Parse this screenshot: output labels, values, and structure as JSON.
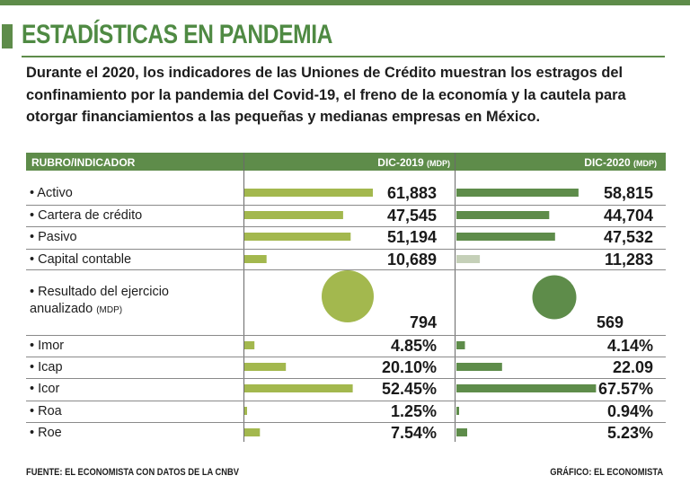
{
  "title": "ESTADÍSTICAS EN PANDEMIA",
  "intro": "Durante el 2020, los indicadores de las Uniones de Crédito muestran los estragos del confinamiento por la pandemia del Covid-19, el freno de la economía y la cautela para otorgar financiamientos a las pequeñas y medianas empresas en México.",
  "header": {
    "col1": "RUBRO/INDICADOR",
    "col2": "DIC-2019",
    "col2_unit": "(MDP)",
    "col3": "DIC-2020",
    "col3_unit": "(MDP)"
  },
  "footer": {
    "source": "FUENTE: EL ECONOMISTA CON DATOS DE LA CNBV",
    "credit": "GRÁFICO: EL ECONOMISTA"
  },
  "colors": {
    "green_2019": "#a3b84e",
    "green_2020": "#5e8c4a",
    "capital_2020": "#c5d0b8",
    "header_bg": "#5e8c4a",
    "title": "#4f8a43"
  },
  "chart_data": {
    "type": "table",
    "series": [
      {
        "name": "DIC-2019 (MDP)"
      },
      {
        "name": "DIC-2020 (MDP)"
      }
    ],
    "rows": [
      {
        "label": "• Activo",
        "v2019": 61883,
        "t2019": "61,883",
        "v2020": 58815,
        "t2020": "58,815",
        "group": "money"
      },
      {
        "label": "• Cartera de crédito",
        "v2019": 47545,
        "t2019": "47,545",
        "v2020": 44704,
        "t2020": "44,704",
        "group": "money"
      },
      {
        "label": "• Pasivo",
        "v2019": 51194,
        "t2019": "51,194",
        "v2020": 47532,
        "t2020": "47,532",
        "group": "money"
      },
      {
        "label": "• Capital contable",
        "v2019": 10689,
        "t2019": "10,689",
        "v2020": 11283,
        "t2020": "11,283",
        "group": "money"
      },
      {
        "label": "• Resultado del ejercicio anualizado",
        "unit": "(MDP)",
        "v2019": 794,
        "t2019": "794",
        "v2020": 569,
        "t2020": "569",
        "group": "bubble"
      },
      {
        "label": "• Imor",
        "v2019": 4.85,
        "t2019": "4.85%",
        "v2020": 4.14,
        "t2020": "4.14%",
        "group": "pct"
      },
      {
        "label": "• Icap",
        "v2019": 20.1,
        "t2019": "20.10%",
        "v2020": 22.09,
        "t2020": "22.09",
        "group": "pct"
      },
      {
        "label": "• Icor",
        "v2019": 52.45,
        "t2019": "52.45%",
        "v2020": 67.57,
        "t2020": "67.57%",
        "group": "pct"
      },
      {
        "label": "• Roa",
        "v2019": 1.25,
        "t2019": "1.25%",
        "v2020": 0.94,
        "t2020": "0.94%",
        "group": "pct"
      },
      {
        "label": "• Roe",
        "v2019": 7.54,
        "t2019": "7.54%",
        "v2020": 5.23,
        "t2020": "5.23%",
        "group": "pct"
      }
    ]
  }
}
